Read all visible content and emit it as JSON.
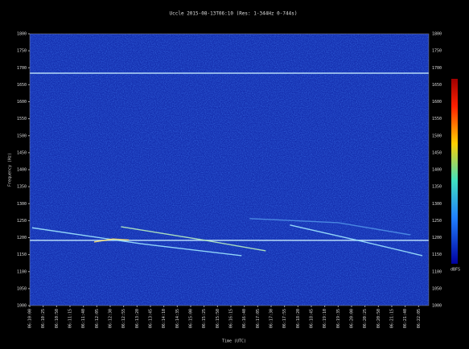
{
  "chart_data": {
    "type": "spectrogram",
    "title": "Uccle 2015-08-13T06:10 (Res: 1-344Hz 0-744s)",
    "xlabel": "Time (UTC)",
    "ylabel": "Frequency (Hz)",
    "xlim": [
      0,
      744
    ],
    "ylim": [
      1000,
      1800
    ],
    "xticks": [
      {
        "value": 0,
        "label": "06:10:00"
      },
      {
        "value": 25,
        "label": "06:10:25"
      },
      {
        "value": 50,
        "label": "06:10:50"
      },
      {
        "value": 75,
        "label": "06:11:15"
      },
      {
        "value": 100,
        "label": "06:11:40"
      },
      {
        "value": 125,
        "label": "06:12:05"
      },
      {
        "value": 150,
        "label": "06:12:30"
      },
      {
        "value": 175,
        "label": "06:12:55"
      },
      {
        "value": 200,
        "label": "06:13:20"
      },
      {
        "value": 225,
        "label": "06:13:45"
      },
      {
        "value": 250,
        "label": "06:14:10"
      },
      {
        "value": 275,
        "label": "06:14:35"
      },
      {
        "value": 300,
        "label": "06:15:00"
      },
      {
        "value": 325,
        "label": "06:15:25"
      },
      {
        "value": 350,
        "label": "06:15:50"
      },
      {
        "value": 375,
        "label": "06:16:15"
      },
      {
        "value": 400,
        "label": "06:16:40"
      },
      {
        "value": 425,
        "label": "06:17:05"
      },
      {
        "value": 450,
        "label": "06:17:30"
      },
      {
        "value": 475,
        "label": "06:17:55"
      },
      {
        "value": 500,
        "label": "06:18:20"
      },
      {
        "value": 525,
        "label": "06:18:45"
      },
      {
        "value": 550,
        "label": "06:19:10"
      },
      {
        "value": 575,
        "label": "06:19:35"
      },
      {
        "value": 600,
        "label": "06:20:00"
      },
      {
        "value": 625,
        "label": "06:20:25"
      },
      {
        "value": 650,
        "label": "06:20:50"
      },
      {
        "value": 675,
        "label": "06:21:15"
      },
      {
        "value": 700,
        "label": "06:21:40"
      },
      {
        "value": 725,
        "label": "06:22:05"
      }
    ],
    "yticks": [
      1800,
      1750,
      1700,
      1650,
      1600,
      1550,
      1500,
      1450,
      1400,
      1350,
      1300,
      1250,
      1200,
      1150,
      1100,
      1050,
      1000
    ],
    "colorbar_label": "dBFS",
    "series": [
      {
        "color": "#c8ecff",
        "x": [
          0,
          744
        ],
        "values": [
          1684,
          1684
        ]
      },
      {
        "color": "#c8ecff",
        "x": [
          0,
          744
        ],
        "values": [
          1192,
          1192
        ]
      },
      {
        "color": "#9fe6ff",
        "x": [
          4.5,
          207,
          395
        ],
        "values": [
          1229,
          1182,
          1147
        ]
      },
      {
        "color": "#b8f0c0",
        "x": [
          170,
          320,
          440
        ],
        "values": [
          1232,
          1194,
          1161
        ]
      },
      {
        "color": "#9fe6ff",
        "x": [
          485,
          620,
          732
        ],
        "values": [
          1237,
          1189,
          1147
        ]
      },
      {
        "color": "#4f8fe6",
        "x": [
          410,
          575,
          710
        ],
        "values": [
          1256,
          1244,
          1208
        ]
      },
      {
        "color": "#ffe36a",
        "x": [
          120,
          155,
          185
        ],
        "values": [
          1187,
          1196,
          1193
        ]
      }
    ]
  }
}
